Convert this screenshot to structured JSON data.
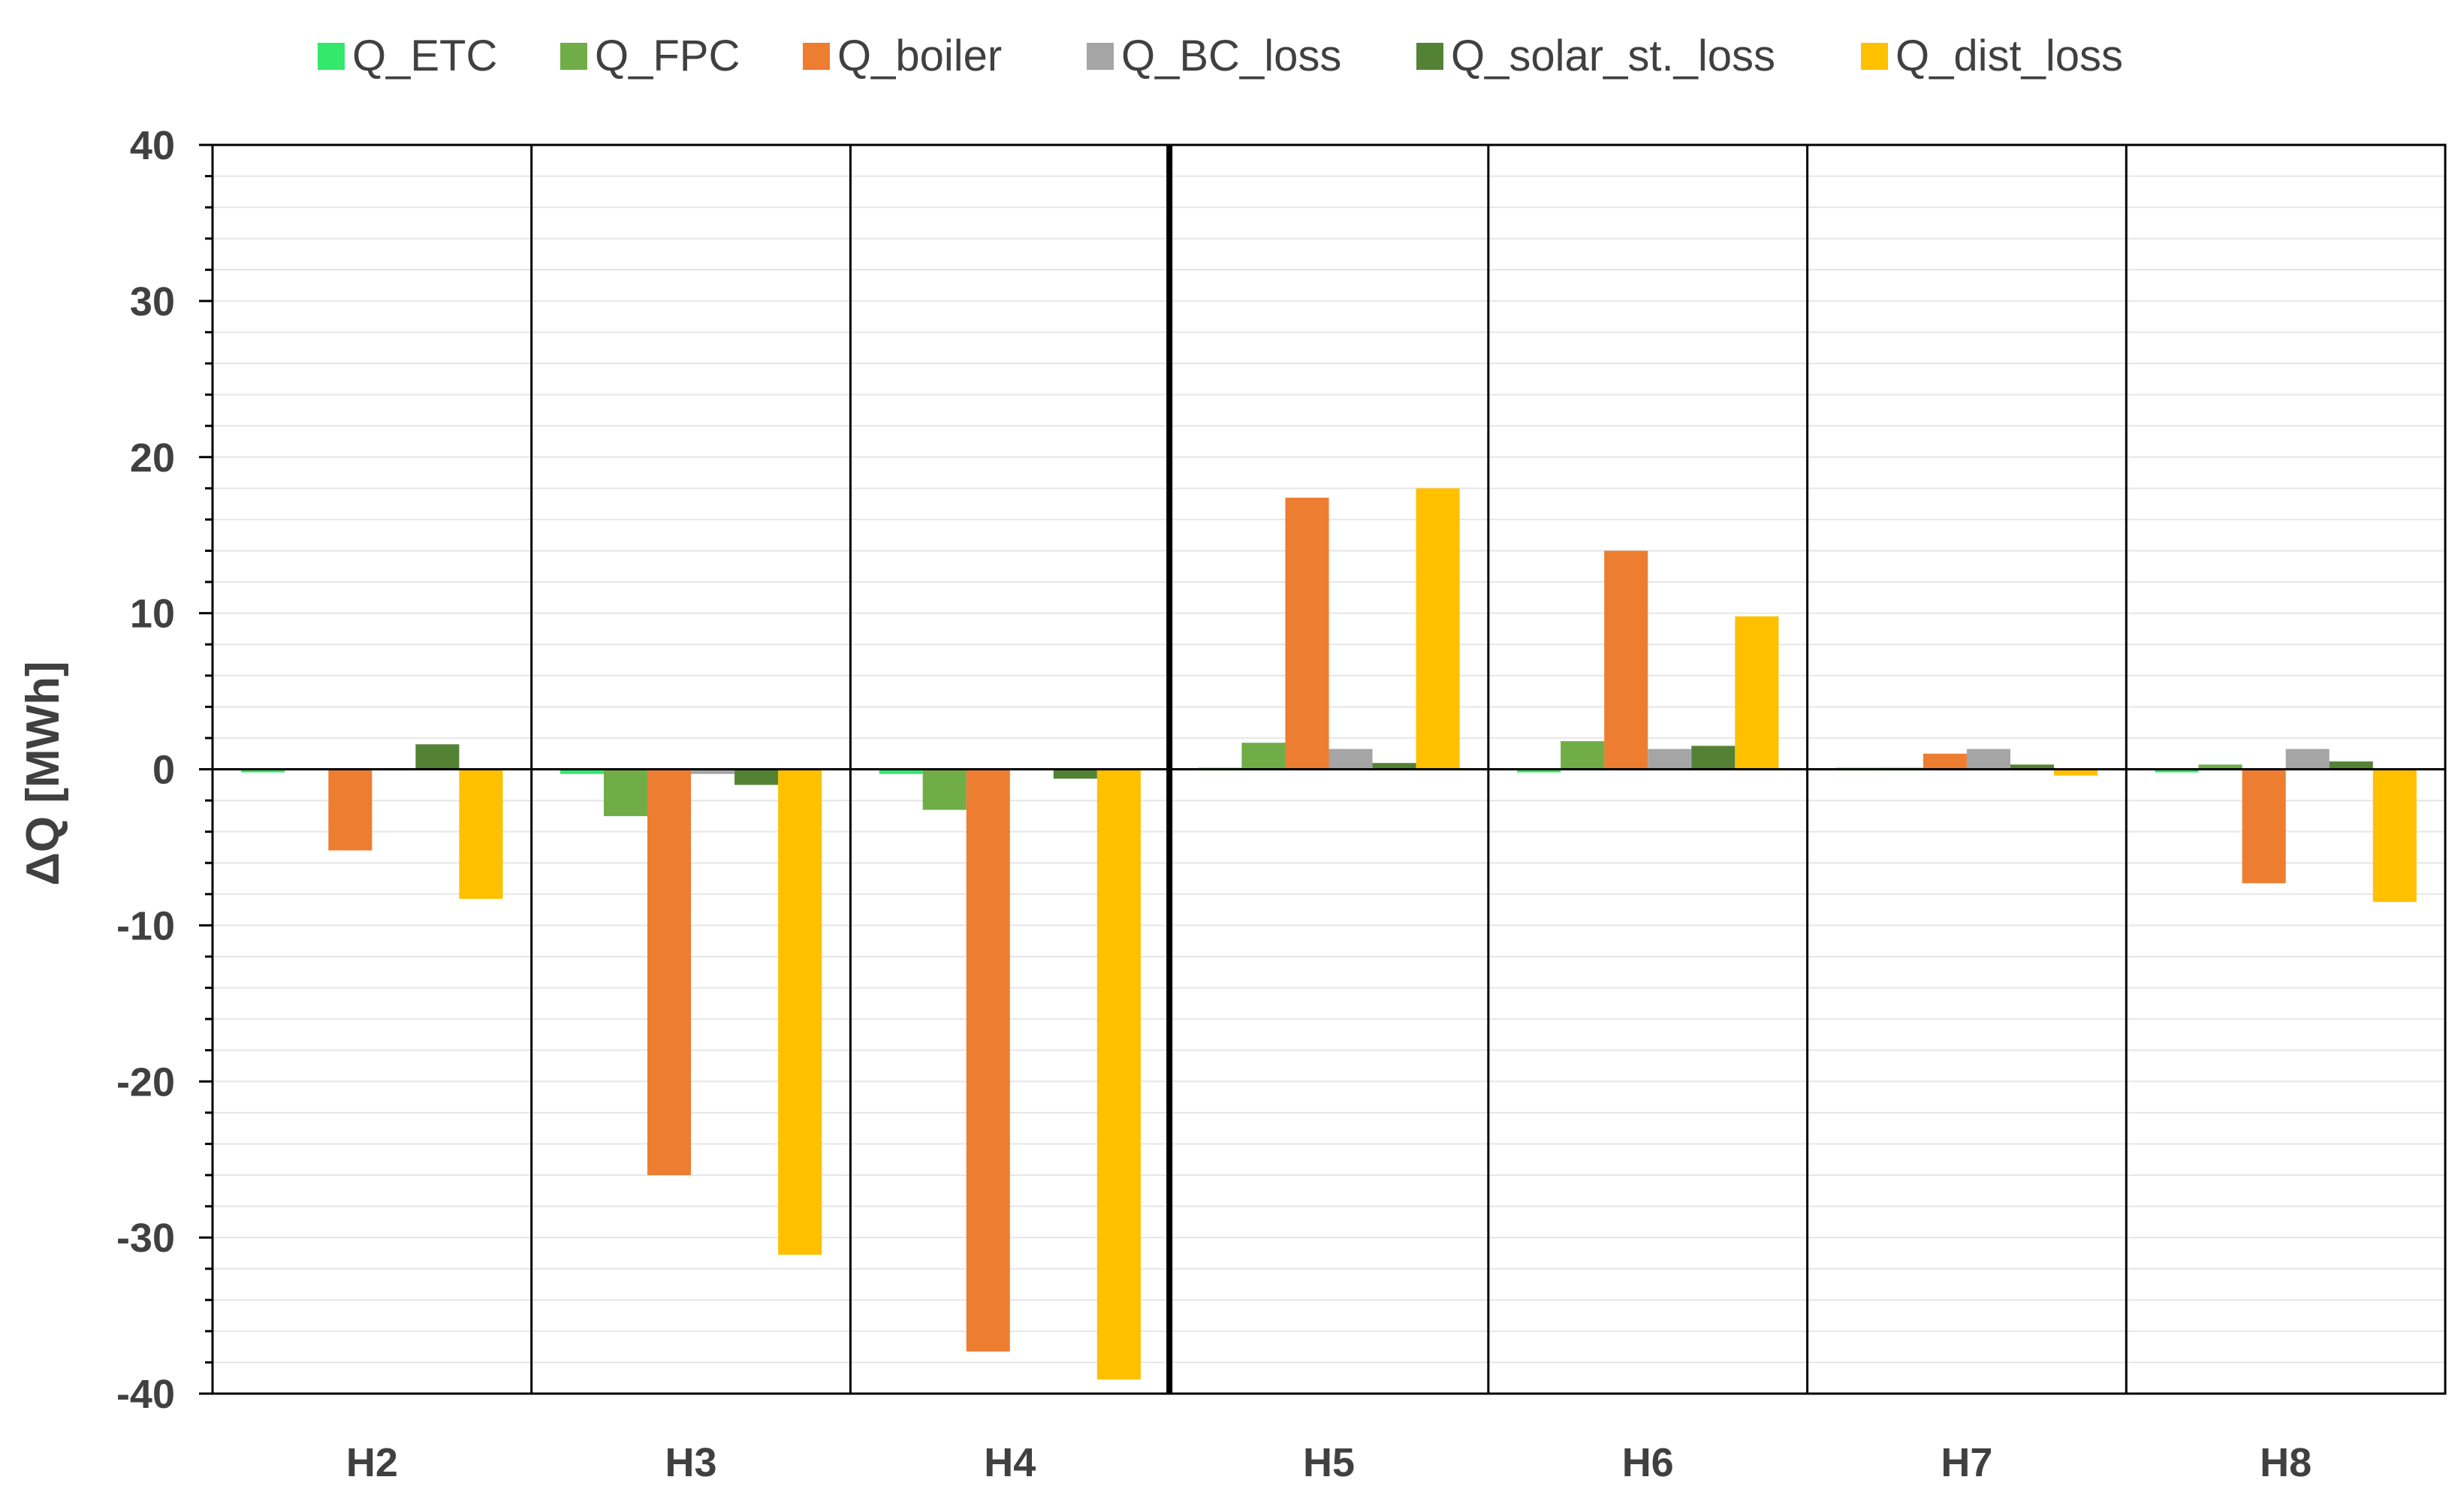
{
  "chart_data": {
    "type": "bar",
    "categories": [
      "H2",
      "H3",
      "H4",
      "H5",
      "H6",
      "H7",
      "H8"
    ],
    "series": [
      {
        "name": "Q_ETC",
        "color": "#33e86a",
        "values": [
          -0.2,
          -0.3,
          -0.3,
          0.1,
          -0.2,
          0.1,
          -0.2
        ]
      },
      {
        "name": "Q_FPC",
        "color": "#70ad47",
        "values": [
          0,
          -3.0,
          -2.6,
          1.7,
          1.8,
          0.1,
          0.3
        ]
      },
      {
        "name": "Q_boiler",
        "color": "#ed7d31",
        "values": [
          -5.2,
          -26.0,
          -37.3,
          17.4,
          14.0,
          1.0,
          -7.3
        ]
      },
      {
        "name": "Q_BC_loss",
        "color": "#a5a5a5",
        "values": [
          0,
          -0.3,
          0,
          1.3,
          1.3,
          1.3,
          1.3
        ]
      },
      {
        "name": "Q_solar_st._loss",
        "color": "#548235",
        "values": [
          1.6,
          -1.0,
          -0.6,
          0.4,
          1.5,
          0.3,
          0.5
        ]
      },
      {
        "name": "Q_dist_loss",
        "color": "#ffc000",
        "values": [
          -8.3,
          -31.1,
          -39.1,
          18.0,
          9.8,
          -0.4,
          -8.5
        ]
      }
    ],
    "xlabel": "",
    "ylabel": "ΔQ [MWh]",
    "ylim": [
      -40,
      40
    ],
    "yticks": [
      40,
      30,
      20,
      10,
      0,
      -10,
      -20,
      -30,
      -40
    ],
    "grid": true,
    "legend_position": "top"
  }
}
